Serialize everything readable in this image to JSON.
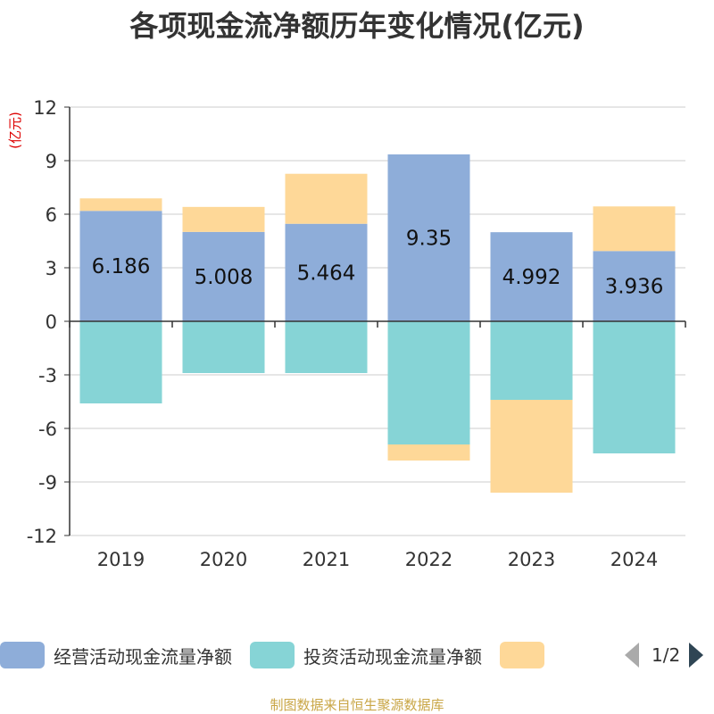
{
  "title": "各项现金流净额历年变化情况(亿元)",
  "source": "制图数据来自恒生聚源数据库",
  "colors": {
    "operating": "#8eadd9",
    "investing": "#86d4d6",
    "financing": "#fed898",
    "axis": "#333333",
    "grid": "#cccccc",
    "unit": "#dd0000"
  },
  "legend": {
    "page_text": "1/2"
  },
  "chart_data": {
    "type": "bar",
    "stacked": true,
    "title": "各项现金流净额历年变化情况(亿元)",
    "ylabel": "(亿元)",
    "xlabel": "",
    "ylim": [
      -12,
      12
    ],
    "yticks": [
      12,
      9,
      6,
      3,
      0,
      -3,
      -6,
      -9,
      -12
    ],
    "categories": [
      "2019",
      "2020",
      "2021",
      "2022",
      "2023",
      "2024"
    ],
    "series": [
      {
        "name": "经营活动现金流量净额",
        "key": "operating",
        "values": [
          6.186,
          5.008,
          5.464,
          9.35,
          4.992,
          3.936
        ],
        "labels": [
          "6.186",
          "5.008",
          "5.464",
          "9.35",
          "4.992",
          "3.936"
        ]
      },
      {
        "name": "投资活动现金流量净额",
        "key": "investing",
        "values": [
          -4.6,
          -2.9,
          -2.9,
          -6.9,
          -4.4,
          -7.4
        ]
      },
      {
        "name": "",
        "key": "financing",
        "values": [
          0.7,
          1.4,
          2.8,
          -0.9,
          -5.2,
          2.5
        ]
      }
    ]
  }
}
